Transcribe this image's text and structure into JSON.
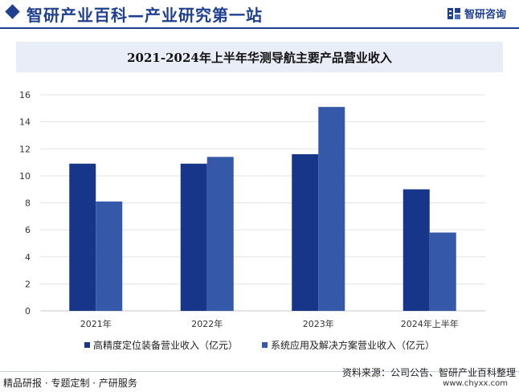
{
  "header": {
    "title": "智研产业百科—产业研究第一站",
    "brand": "智研咨询"
  },
  "colors": {
    "primary": "#1f3f8f",
    "series1": "#17368a",
    "series2": "#3558a8",
    "band": "#e9edf7"
  },
  "chart_data": {
    "type": "bar",
    "title": "2021-2024年上半年华测导航主要产品营业收入",
    "categories": [
      "2021年",
      "2022年",
      "2023年",
      "2024年上半年"
    ],
    "series": [
      {
        "name": "高精度定位装备营业收入（亿元）",
        "values": [
          10.9,
          10.9,
          11.6,
          9.0
        ]
      },
      {
        "name": "系统应用及解决方案营业收入（亿元）",
        "values": [
          8.1,
          11.4,
          15.1,
          5.8
        ]
      }
    ],
    "ylim": [
      0,
      16
    ],
    "yticks": [
      0,
      2,
      4,
      6,
      8,
      10,
      12,
      14,
      16
    ],
    "grid": true,
    "legend": "bottom",
    "xlabel": "",
    "ylabel": ""
  },
  "footer": {
    "left": "精品研报 · 专题定制 · 产研服务",
    "source": "资料来源：公司公告、智研产业百科整理",
    "url": "www.chyxx.com"
  }
}
